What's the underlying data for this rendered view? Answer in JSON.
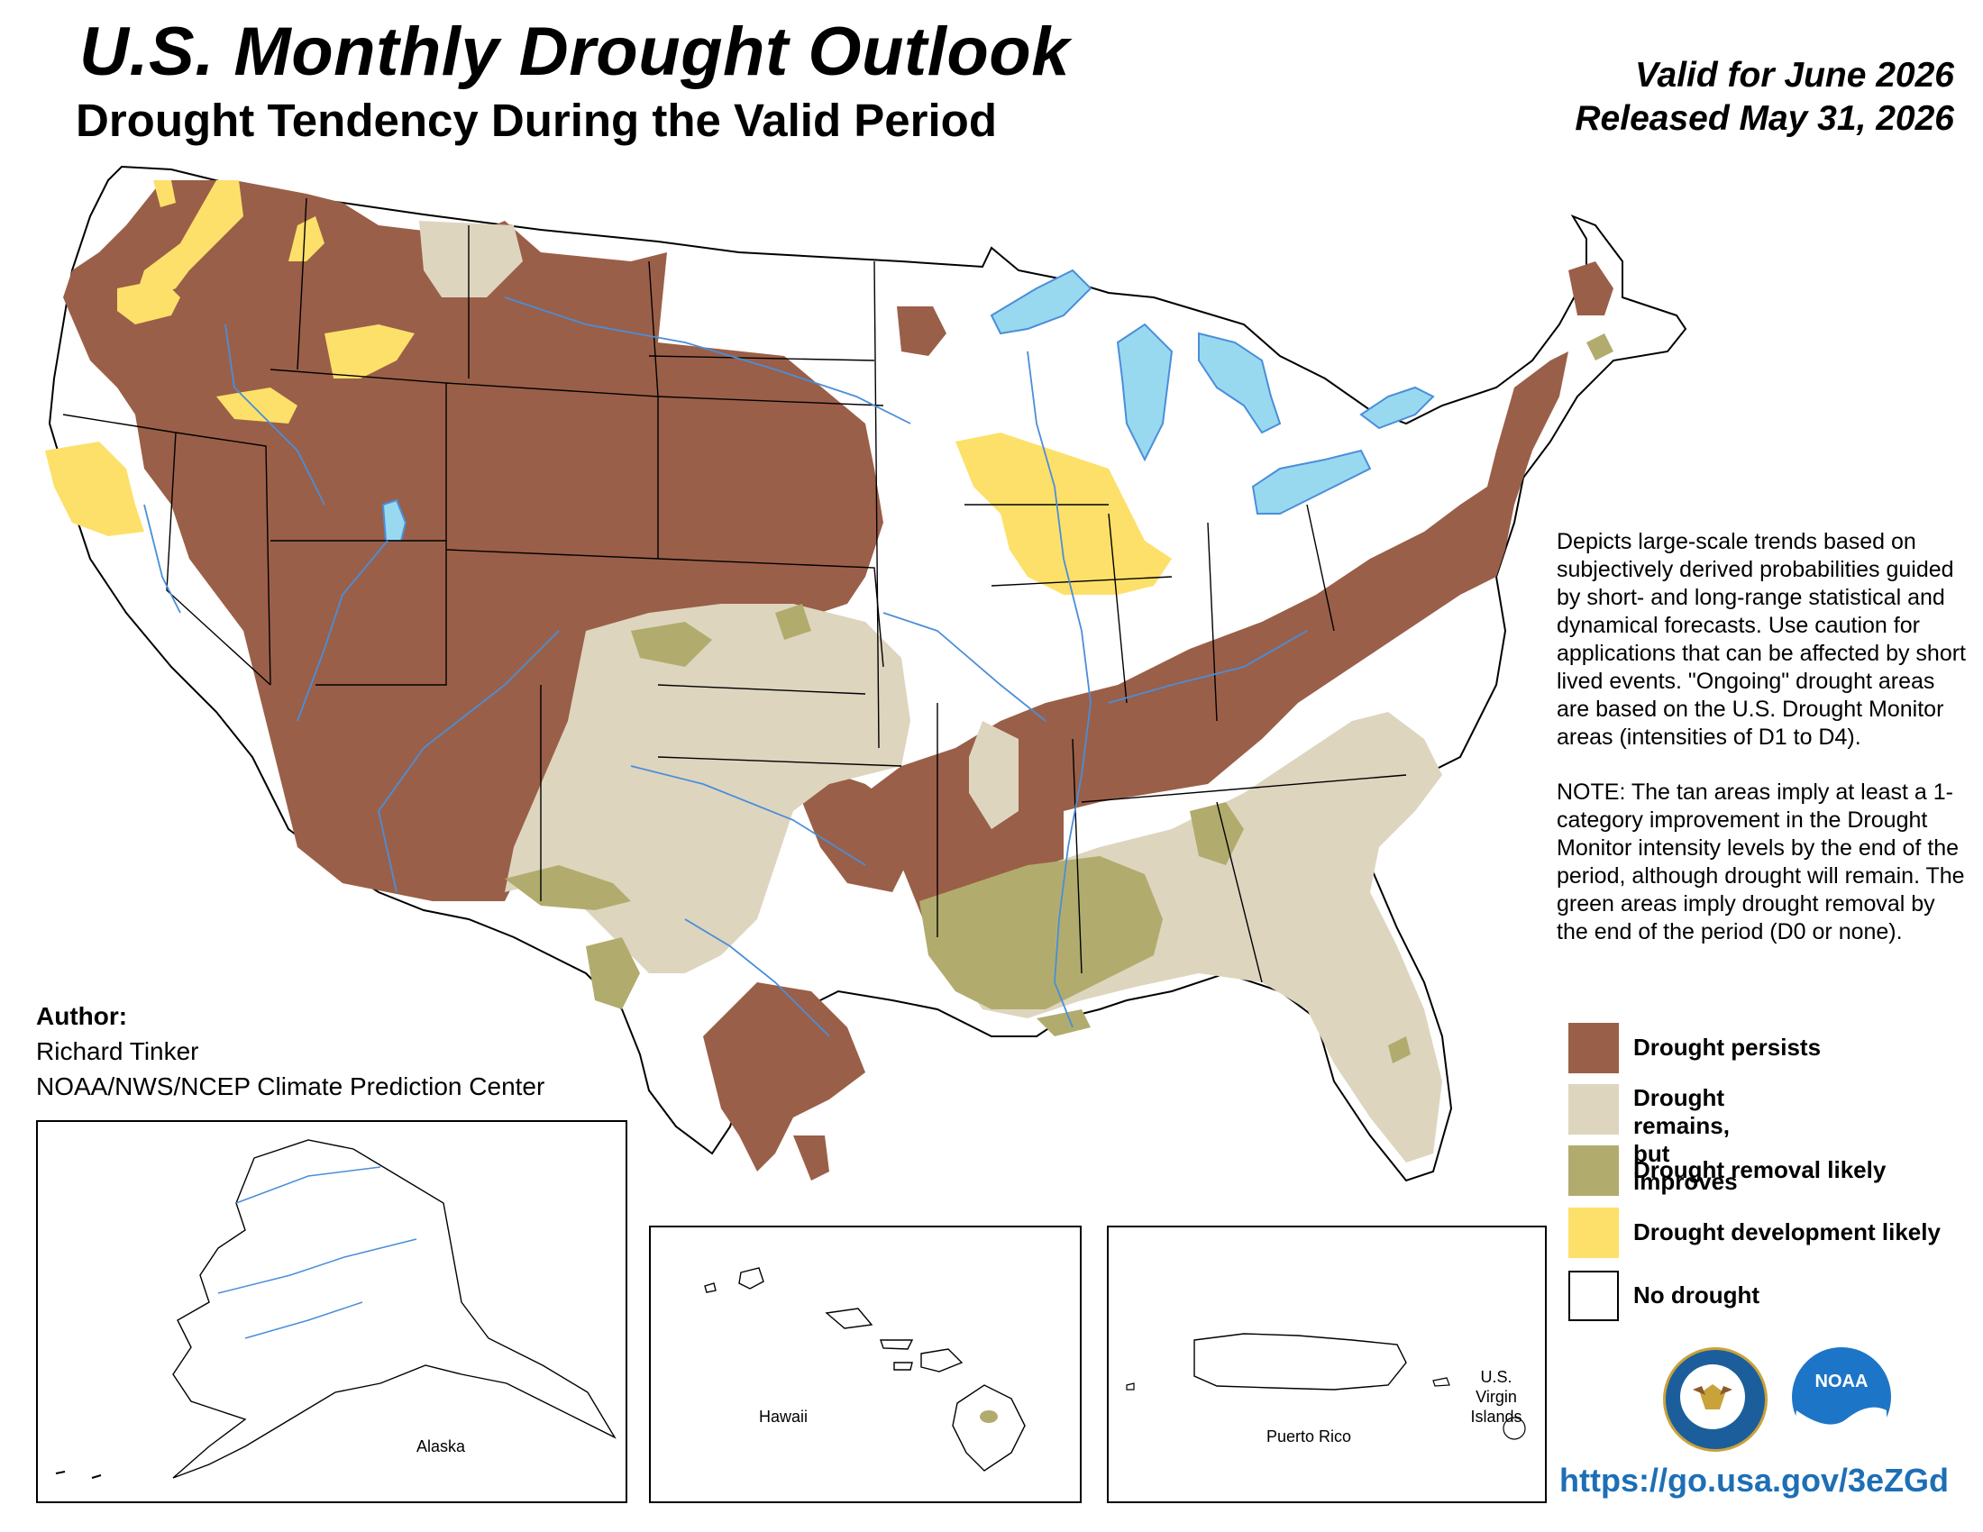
{
  "header": {
    "title": "U.S. Monthly Drought Outlook",
    "subtitle": "Drought Tendency During the Valid Period",
    "valid_for": "Valid for June 2026",
    "released": "Released May 31, 2026"
  },
  "description": {
    "para1": "Depicts large-scale trends based on subjectively derived probabilities guided by short- and long-range statistical and dynamical forecasts. Use caution for applications that can be affected by short lived events. \"Ongoing\" drought areas are based on the U.S. Drought Monitor areas (intensities of D1 to D4).",
    "para2": "NOTE: The tan areas imply at least a 1-category improvement in the Drought Monitor intensity levels by the end of the period, although drought will remain. The green areas imply drought removal by the end of the period (D0 or none)."
  },
  "legend": [
    {
      "label": "Drought persists",
      "color": "#9a5f48"
    },
    {
      "label": "Drought remains,\nbut improves",
      "color": "#ded5bf"
    },
    {
      "label": "Drought removal likely",
      "color": "#b1ac6e"
    },
    {
      "label": "Drought development likely",
      "color": "#fde06a"
    },
    {
      "label": "No drought",
      "color": "#ffffff"
    }
  ],
  "author": {
    "heading": "Author:",
    "name": "Richard Tinker",
    "org": "NOAA/NWS/NCEP Climate Prediction Center"
  },
  "insets": {
    "alaska": "Alaska",
    "hawaii": "Hawaii",
    "puerto_rico": "Puerto Rico",
    "virgin_islands": "U.S. Virgin Islands"
  },
  "logos": {
    "commerce": "commerce-seal-icon",
    "noaa": "NOAA"
  },
  "url": "https://go.usa.gov/3eZGd",
  "colors": {
    "persists": "#9a5f48",
    "improves": "#ded5bf",
    "removal": "#b1ac6e",
    "development": "#fde06a",
    "water": "#99d9f0",
    "rivers": "#4a8ed9"
  }
}
